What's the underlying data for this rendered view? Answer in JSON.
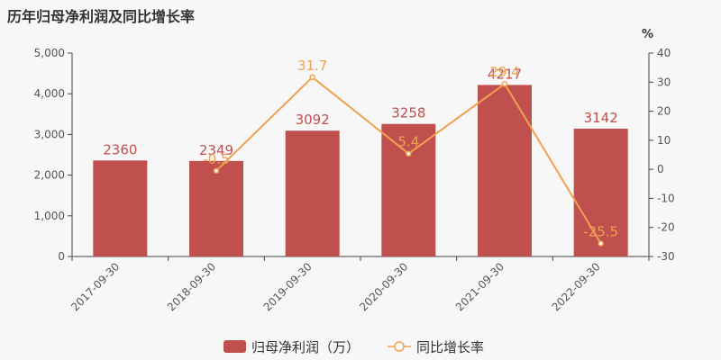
{
  "chart_data": {
    "type": "bar",
    "title": "历年归母净利润及同比增长率",
    "categories": [
      "2017-09-30",
      "2018-09-30",
      "2019-09-30",
      "2020-09-30",
      "2021-09-30",
      "2022-09-30"
    ],
    "series": [
      {
        "name": "归母净利润（万）",
        "type": "bar",
        "axis": "left",
        "values": [
          2360,
          2349,
          3092,
          3258,
          4217,
          3142
        ],
        "color": "#c0504d"
      },
      {
        "name": "同比增长率",
        "type": "line",
        "axis": "right",
        "values": [
          null,
          -0.5,
          31.7,
          5.4,
          29.4,
          -25.5
        ],
        "color": "#f0a050"
      }
    ],
    "bar_labels": [
      "2360",
      "2349",
      "3092",
      "3258",
      "4217",
      "3142"
    ],
    "line_labels": [
      "",
      "-0.5",
      "31.7",
      "5.4",
      "29.4",
      "-25.5"
    ],
    "y_left": {
      "lim": [
        0,
        5000
      ],
      "ticks": [
        "0",
        "1,000",
        "2,000",
        "3,000",
        "4,000",
        "5,000"
      ]
    },
    "y_right": {
      "unit": "%",
      "lim": [
        -30,
        40
      ],
      "ticks": [
        "-30",
        "-20",
        "-10",
        "0",
        "10",
        "20",
        "30",
        "40"
      ]
    },
    "legend": {
      "position": "bottom",
      "items": [
        "归母净利润（万）",
        "同比增长率"
      ]
    },
    "grid": false
  }
}
